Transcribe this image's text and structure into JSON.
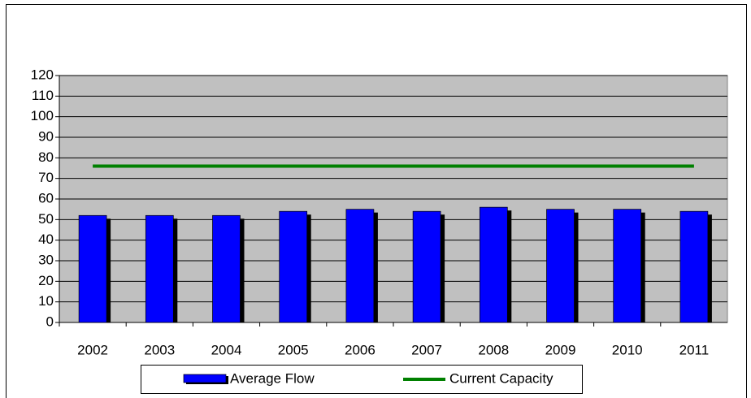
{
  "chart_data": {
    "type": "bar",
    "categories": [
      "2002",
      "2003",
      "2004",
      "2005",
      "2006",
      "2007",
      "2008",
      "2009",
      "2010",
      "2011"
    ],
    "series": [
      {
        "name": "Average Flow",
        "color": "#0000ff",
        "values": [
          52,
          52,
          52,
          54,
          55,
          54,
          56,
          55,
          55,
          54
        ]
      },
      {
        "name": "Current Capacity",
        "type": "line",
        "color": "#008000",
        "values": [
          76,
          76,
          76,
          76,
          76,
          76,
          76,
          76,
          76,
          76
        ]
      }
    ],
    "ylim": [
      0,
      120
    ],
    "yticks": [
      0,
      10,
      20,
      30,
      40,
      50,
      60,
      70,
      80,
      90,
      100,
      110,
      120
    ],
    "grid": true,
    "legend": "bottom",
    "plot_background": "#c0c0c0"
  }
}
